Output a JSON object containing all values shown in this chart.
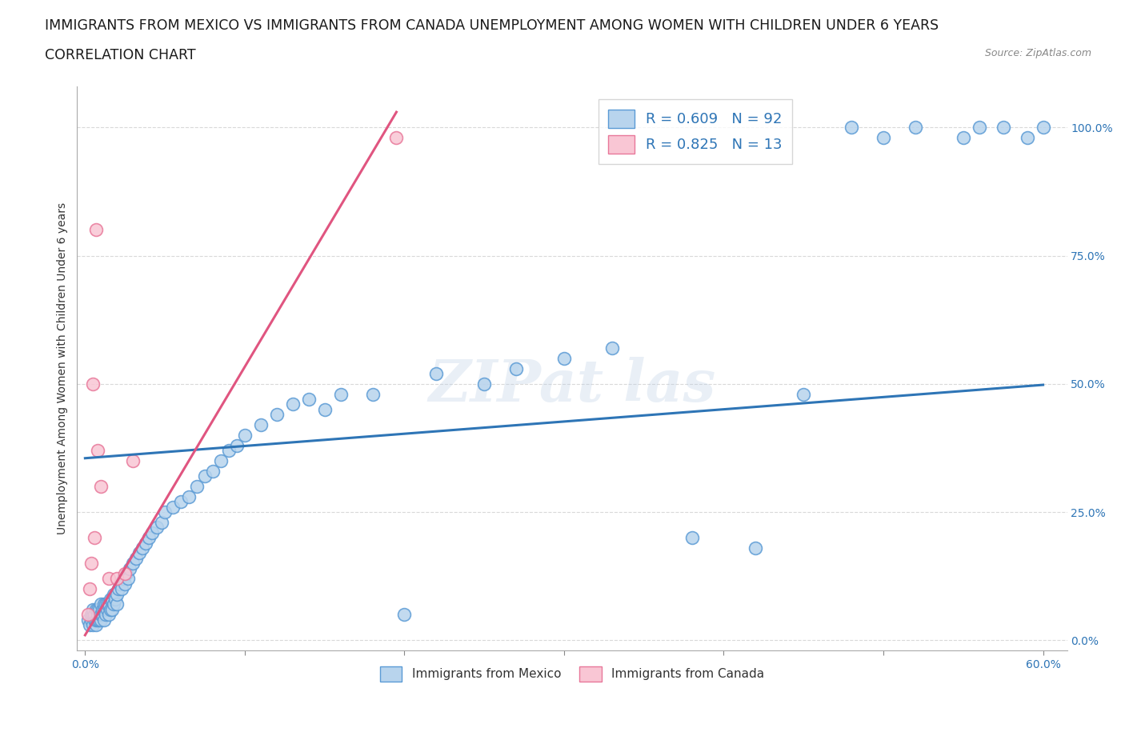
{
  "title_line1": "IMMIGRANTS FROM MEXICO VS IMMIGRANTS FROM CANADA UNEMPLOYMENT AMONG WOMEN WITH CHILDREN UNDER 6 YEARS",
  "title_line2": "CORRELATION CHART",
  "source": "Source: ZipAtlas.com",
  "ylabel": "Unemployment Among Women with Children Under 6 years",
  "xlim": [
    -0.005,
    0.615
  ],
  "ylim": [
    -0.02,
    1.08
  ],
  "xticks": [
    0.0,
    0.1,
    0.2,
    0.3,
    0.4,
    0.5,
    0.6
  ],
  "xticklabels": [
    "0.0%",
    "",
    "",
    "",
    "",
    "",
    "60.0%"
  ],
  "yticks": [
    0.0,
    0.25,
    0.5,
    0.75,
    1.0
  ],
  "yticklabels": [
    "0.0%",
    "25.0%",
    "50.0%",
    "75.0%",
    "100.0%"
  ],
  "legend_mexico": "R = 0.609   N = 92",
  "legend_canada": "R = 0.825   N = 13",
  "mexico_color": "#b8d4ed",
  "mexico_edge_color": "#5b9bd5",
  "canada_color": "#f9c6d4",
  "canada_edge_color": "#e8789a",
  "mexico_trend_color": "#2e75b6",
  "canada_trend_color": "#e05580",
  "background_color": "#ffffff",
  "grid_color": "#d9d9d9",
  "title_fontsize": 12.5,
  "axis_label_fontsize": 10,
  "tick_fontsize": 10,
  "legend_fontsize": 13,
  "mexico_trend_x": [
    0.0,
    0.6
  ],
  "mexico_trend_y": [
    0.355,
    0.498
  ],
  "canada_trend_x": [
    0.0,
    0.195
  ],
  "canada_trend_y": [
    0.01,
    1.03
  ],
  "mexico_x": [
    0.002,
    0.003,
    0.004,
    0.004,
    0.005,
    0.005,
    0.005,
    0.006,
    0.006,
    0.007,
    0.007,
    0.007,
    0.008,
    0.008,
    0.008,
    0.009,
    0.009,
    0.01,
    0.01,
    0.01,
    0.011,
    0.011,
    0.012,
    0.012,
    0.012,
    0.013,
    0.013,
    0.014,
    0.014,
    0.015,
    0.015,
    0.016,
    0.016,
    0.017,
    0.017,
    0.018,
    0.018,
    0.019,
    0.02,
    0.02,
    0.021,
    0.022,
    0.023,
    0.024,
    0.025,
    0.026,
    0.027,
    0.028,
    0.03,
    0.032,
    0.034,
    0.036,
    0.038,
    0.04,
    0.042,
    0.045,
    0.048,
    0.05,
    0.055,
    0.06,
    0.065,
    0.07,
    0.075,
    0.08,
    0.085,
    0.09,
    0.095,
    0.1,
    0.11,
    0.12,
    0.13,
    0.14,
    0.15,
    0.16,
    0.18,
    0.2,
    0.22,
    0.25,
    0.27,
    0.3,
    0.33,
    0.38,
    0.42,
    0.45,
    0.48,
    0.5,
    0.52,
    0.55,
    0.56,
    0.575,
    0.59,
    0.6
  ],
  "mexico_y": [
    0.04,
    0.03,
    0.04,
    0.05,
    0.03,
    0.05,
    0.06,
    0.04,
    0.05,
    0.03,
    0.04,
    0.06,
    0.04,
    0.05,
    0.06,
    0.04,
    0.06,
    0.04,
    0.05,
    0.07,
    0.05,
    0.06,
    0.04,
    0.06,
    0.07,
    0.05,
    0.07,
    0.06,
    0.07,
    0.05,
    0.07,
    0.06,
    0.08,
    0.06,
    0.08,
    0.07,
    0.09,
    0.08,
    0.07,
    0.09,
    0.1,
    0.11,
    0.1,
    0.12,
    0.11,
    0.13,
    0.12,
    0.14,
    0.15,
    0.16,
    0.17,
    0.18,
    0.19,
    0.2,
    0.21,
    0.22,
    0.23,
    0.25,
    0.26,
    0.27,
    0.28,
    0.3,
    0.32,
    0.33,
    0.35,
    0.37,
    0.38,
    0.4,
    0.42,
    0.44,
    0.46,
    0.47,
    0.45,
    0.48,
    0.48,
    0.05,
    0.52,
    0.5,
    0.53,
    0.55,
    0.57,
    0.2,
    0.18,
    0.48,
    1.0,
    0.98,
    1.0,
    0.98,
    1.0,
    1.0,
    0.98,
    1.0
  ],
  "canada_x": [
    0.002,
    0.003,
    0.004,
    0.005,
    0.006,
    0.007,
    0.008,
    0.01,
    0.015,
    0.02,
    0.025,
    0.03,
    0.195
  ],
  "canada_y": [
    0.05,
    0.1,
    0.15,
    0.5,
    0.2,
    0.8,
    0.37,
    0.3,
    0.12,
    0.12,
    0.13,
    0.35,
    0.98
  ]
}
